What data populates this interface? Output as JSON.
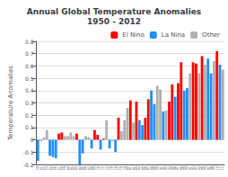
{
  "chart_data": {
    "type": "bar",
    "title": "Annual Global Temperature Anomalies\n1950 - 2012",
    "ylabel": "Temperature Anomalies",
    "categories": [
      "50",
      "51",
      "52",
      "53",
      "54",
      "55",
      "56",
      "57",
      "58",
      "59",
      "60",
      "61",
      "62",
      "63",
      "64",
      "65",
      "66",
      "67",
      "68",
      "69",
      "70",
      "71",
      "72",
      "73",
      "74",
      "75",
      "76",
      "77",
      "78",
      "79",
      "80",
      "81",
      "82",
      "83",
      "84",
      "85",
      "86",
      "87",
      "88",
      "89",
      "90",
      "91",
      "92",
      "93",
      "94",
      "95",
      "96",
      "97",
      "98",
      "99",
      "00",
      "01",
      "02",
      "03",
      "04",
      "05",
      "06",
      "07",
      "08",
      "09",
      "10",
      "11",
      "12"
    ],
    "series": [
      {
        "name": "El Nino",
        "color": "#FF0000",
        "values": [
          null,
          null,
          null,
          null,
          null,
          null,
          null,
          0.05,
          0.06,
          null,
          null,
          null,
          null,
          0.05,
          null,
          null,
          null,
          null,
          null,
          0.08,
          0.04,
          null,
          0.01,
          null,
          null,
          null,
          null,
          0.18,
          null,
          null,
          null,
          0.32,
          null,
          0.31,
          null,
          null,
          0.18,
          0.33,
          null,
          null,
          null,
          null,
          null,
          null,
          0.31,
          0.45,
          null,
          0.46,
          0.63,
          null,
          null,
          null,
          0.63,
          0.62,
          null,
          0.68,
          null,
          null,
          null,
          null,
          0.72,
          null,
          null
        ]
      },
      {
        "name": "La Nina",
        "color": "#1E90FF",
        "values": [
          -0.17,
          null,
          null,
          null,
          -0.13,
          -0.14,
          -0.15,
          null,
          null,
          null,
          null,
          null,
          null,
          null,
          -0.2,
          -0.11,
          null,
          null,
          -0.07,
          null,
          null,
          -0.08,
          null,
          null,
          -0.07,
          null,
          -0.1,
          null,
          null,
          null,
          null,
          null,
          null,
          null,
          0.16,
          0.12,
          null,
          null,
          0.4,
          0.29,
          null,
          null,
          0.23,
          null,
          null,
          null,
          0.35,
          null,
          null,
          0.4,
          0.42,
          null,
          null,
          null,
          null,
          null,
          null,
          0.66,
          0.54,
          null,
          null,
          0.61,
          null
        ]
      },
      {
        "name": "Other",
        "color": "#B0B0B0",
        "values": [
          null,
          -0.01,
          0.02,
          0.08,
          null,
          null,
          null,
          null,
          null,
          0.03,
          0.03,
          0.06,
          0.03,
          null,
          null,
          null,
          0.03,
          0.02,
          null,
          null,
          null,
          null,
          null,
          0.16,
          null,
          -0.01,
          null,
          null,
          0.07,
          0.16,
          0.26,
          null,
          0.14,
          null,
          null,
          null,
          null,
          null,
          null,
          null,
          0.44,
          0.41,
          null,
          0.24,
          null,
          null,
          null,
          null,
          null,
          null,
          null,
          0.54,
          null,
          null,
          0.54,
          null,
          0.61,
          null,
          null,
          0.64,
          null,
          null,
          0.57
        ]
      }
    ],
    "ylim": [
      -0.2,
      0.8
    ],
    "yticks": [
      -0.2,
      -0.1,
      0.0,
      0.1,
      0.2,
      0.3,
      0.4,
      0.5,
      0.6,
      0.7,
      0.8
    ],
    "grid": true,
    "legend": "upper right"
  }
}
